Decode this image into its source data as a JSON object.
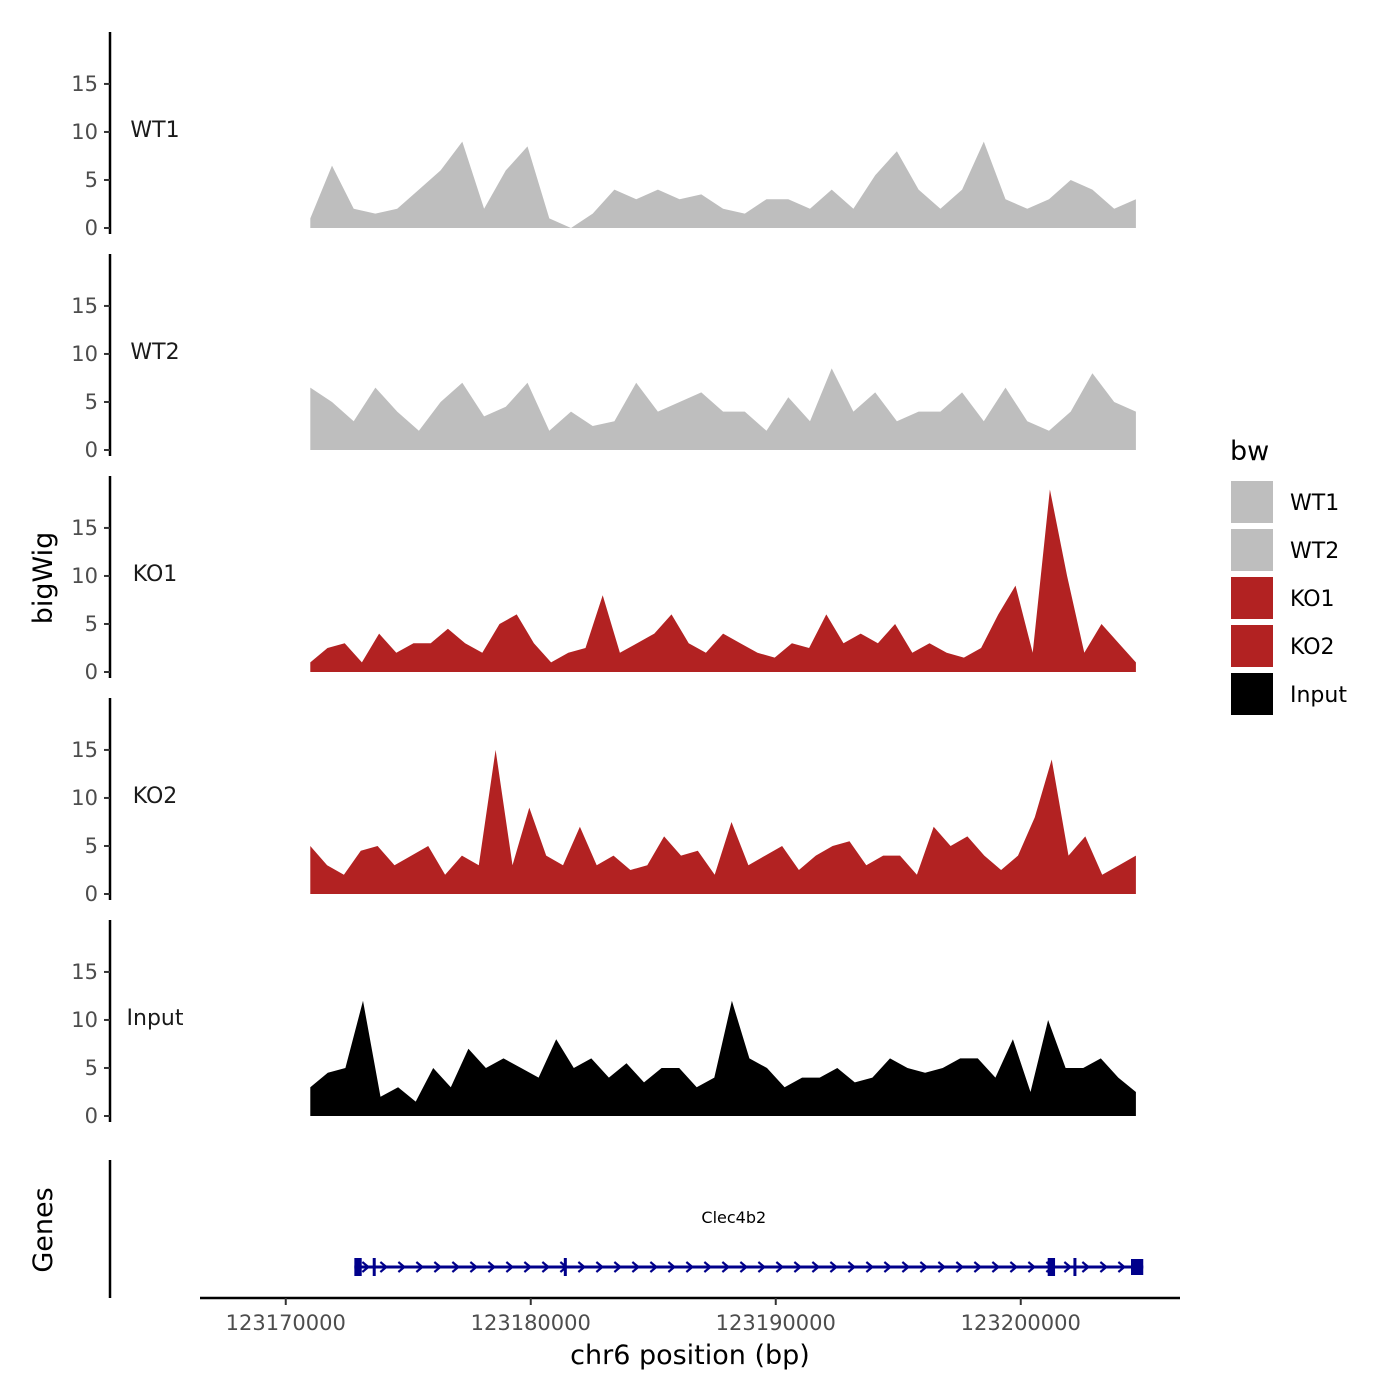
{
  "chart_data": {
    "type": "area",
    "chromosome": "chr6",
    "xlabel": "chr6 position (bp)",
    "ylabel": "bigWig",
    "genes_label": "Genes",
    "xlim": [
      123166500,
      123206500
    ],
    "ylim": [
      0,
      20
    ],
    "x_ticks": [
      123170000,
      123180000,
      123190000,
      123200000
    ],
    "x_tick_labels": [
      "123170000",
      "123180000",
      "123190000",
      "123200000"
    ],
    "y_ticks": [
      0,
      5,
      10,
      15
    ],
    "y_tick_labels": [
      "0",
      "5",
      "10",
      "15"
    ],
    "legend": {
      "title": "bw",
      "entries": [
        {
          "label": "WT1",
          "color": "#bebebe"
        },
        {
          "label": "WT2",
          "color": "#bebebe"
        },
        {
          "label": "KO1",
          "color": "#b22222"
        },
        {
          "label": "KO2",
          "color": "#b22222"
        },
        {
          "label": "Input",
          "color": "#000000"
        }
      ]
    },
    "x_start": 123171000,
    "step": 1000,
    "series": [
      {
        "name": "WT1",
        "color": "#bebebe",
        "values": [
          1,
          6.5,
          2,
          1.5,
          2,
          4,
          6,
          9,
          2,
          6,
          8.5,
          1,
          0,
          1.5,
          4,
          3,
          4,
          3,
          3.5,
          2,
          1.5,
          3,
          3,
          2,
          4,
          2,
          5.5,
          8,
          4,
          2,
          4,
          9,
          3,
          2,
          3,
          5,
          4,
          2,
          3
        ]
      },
      {
        "name": "WT2",
        "color": "#bebebe",
        "values": [
          6.5,
          5,
          3,
          6.5,
          4,
          2,
          5,
          7,
          3.5,
          4.5,
          7,
          2,
          4,
          2.5,
          3,
          7,
          4,
          5,
          6,
          4,
          4,
          2,
          5.5,
          3,
          8.5,
          4,
          6,
          3,
          4,
          4,
          6,
          3,
          6.5,
          3,
          2,
          4,
          8,
          5,
          4
        ]
      },
      {
        "name": "KO1",
        "color": "#b22222",
        "values": [
          1,
          2.5,
          3,
          1,
          4,
          2,
          3,
          3,
          4.5,
          3,
          2,
          5,
          6,
          3,
          1,
          2,
          2.5,
          8,
          2,
          3,
          4,
          6,
          3,
          2,
          4,
          3,
          2,
          1.5,
          3,
          2.5,
          6,
          3,
          4,
          3,
          5,
          2,
          3,
          2,
          1.5,
          2.5,
          6,
          9,
          2,
          19,
          10,
          2,
          5,
          3,
          1
        ]
      },
      {
        "name": "KO2",
        "color": "#b22222",
        "values": [
          5,
          3,
          2,
          4.5,
          5,
          3,
          4,
          5,
          2,
          4,
          3,
          15,
          3,
          9,
          4,
          3,
          7,
          3,
          4,
          2.5,
          3,
          6,
          4,
          4.5,
          2,
          7.5,
          3,
          4,
          5,
          2.5,
          4,
          5,
          5.5,
          3,
          4,
          4,
          2,
          7,
          5,
          6,
          4,
          2.5,
          4,
          8,
          14,
          4,
          6,
          2,
          3,
          4
        ]
      },
      {
        "name": "Input",
        "color": "#000000",
        "values": [
          3,
          4.5,
          5,
          12,
          2,
          3,
          1.5,
          5,
          3,
          7,
          5,
          6,
          5,
          4,
          8,
          5,
          6,
          4,
          5.5,
          3.5,
          5,
          5,
          3,
          4,
          12,
          6,
          5,
          3,
          4,
          4,
          5,
          3.5,
          4,
          6,
          5,
          4.5,
          5,
          6,
          6,
          4,
          8,
          2.5,
          10,
          5,
          5,
          6,
          4,
          2.5
        ]
      }
    ],
    "genes": [
      {
        "name": "Clec4b2",
        "start": 123172800,
        "end": 123205000,
        "strand": "+",
        "color": "#00008b",
        "exons": [
          {
            "start": 123172800,
            "end": 123173100
          },
          {
            "start": 123173550,
            "end": 123173650
          },
          {
            "start": 123181350,
            "end": 123181450
          },
          {
            "start": 123201100,
            "end": 123201400
          },
          {
            "start": 123202150,
            "end": 123202250
          },
          {
            "start": 123204500,
            "end": 123205000
          }
        ]
      }
    ]
  }
}
